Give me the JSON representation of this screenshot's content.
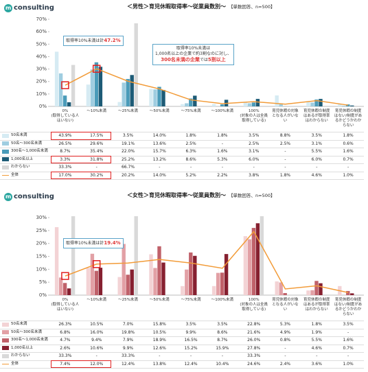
{
  "chart_data": [
    {
      "type": "bar",
      "logo_icon": "m",
      "logo": "consulting",
      "title": "＜男性＞育児休暇取得率～従業員数別～",
      "note": "【単数回答、n=500】",
      "categories": [
        "0%\n(取得している人はいない)",
        "～10%未満",
        "～25%未満",
        "～50%未満",
        "～75%未満",
        "～100%未満",
        "100%\n(対象の人は全員取得している)",
        "育児休暇の対象となる人がいない",
        "育児休暇の制度はあるが取得率はわからない",
        "育児休暇の制度はない/制度があるかどうかわからない"
      ],
      "ylim": [
        0,
        70
      ],
      "yticks": [
        {
          "value": 0,
          "label": "0%"
        },
        {
          "value": 10,
          "label": "10%"
        },
        {
          "value": 20,
          "label": "20%"
        },
        {
          "value": 30,
          "label": "30%"
        },
        {
          "value": 40,
          "label": "40%"
        },
        {
          "value": 50,
          "label": "50%"
        },
        {
          "value": 60,
          "label": "60%"
        },
        {
          "value": 70,
          "label": "70%"
        }
      ],
      "series": [
        {
          "name": "50名未満",
          "color": "#d6ebf3",
          "values": [
            43.9,
            17.5,
            3.5,
            14.0,
            1.8,
            1.8,
            3.5,
            8.8,
            3.5,
            1.8
          ],
          "value_labels": [
            "43.9%",
            "17.5%",
            "3.5%",
            "14.0%",
            "1.8%",
            "1.8%",
            "3.5%",
            "8.8%",
            "3.5%",
            "1.8%"
          ]
        },
        {
          "name": "50名～300名未満",
          "color": "#9fcde0",
          "values": [
            26.5,
            29.6,
            19.1,
            13.6,
            2.5,
            null,
            2.5,
            2.5,
            3.1,
            0.6
          ],
          "value_labels": [
            "26.5%",
            "29.6%",
            "19.1%",
            "13.6%",
            "2.5%",
            "-",
            "2.5%",
            "2.5%",
            "3.1%",
            "0.6%"
          ]
        },
        {
          "name": "300名～1,000名未満",
          "color": "#4a9bb9",
          "values": [
            8.7,
            35.4,
            22.0,
            15.7,
            6.3,
            1.6,
            3.1,
            null,
            5.5,
            1.6
          ],
          "value_labels": [
            "8.7%",
            "35.4%",
            "22.0%",
            "15.7%",
            "6.3%",
            "1.6%",
            "3.1%",
            "-",
            "5.5%",
            "1.6%"
          ]
        },
        {
          "name": "1,000名以上",
          "color": "#1d5b76",
          "values": [
            3.3,
            31.8,
            25.2,
            13.2,
            8.6,
            5.3,
            6.0,
            null,
            6.0,
            0.7
          ],
          "value_labels": [
            "3.3%",
            "31.8%",
            "25.2%",
            "13.2%",
            "8.6%",
            "5.3%",
            "6.0%",
            "-",
            "6.0%",
            "0.7%"
          ]
        },
        {
          "name": "わからない",
          "color": "#d9d9d9",
          "values": [
            33.3,
            null,
            66.7,
            null,
            null,
            null,
            null,
            null,
            null,
            null
          ],
          "value_labels": [
            "33.3%",
            "-",
            "66.7%",
            "-",
            "-",
            "-",
            "-",
            "-",
            "-",
            "-"
          ]
        },
        {
          "name": "全体",
          "color": "#f29b38",
          "type": "line",
          "values": [
            17.0,
            30.2,
            20.2,
            14.0,
            5.2,
            2.2,
            3.8,
            1.8,
            4.6,
            1.0
          ],
          "value_labels": [
            "17.0%",
            "30.2%",
            "20.2%",
            "14.0%",
            "5.2%",
            "2.2%",
            "3.8%",
            "1.8%",
            "4.6%",
            "1.0%"
          ]
        }
      ],
      "annotations": [
        {
          "lines": [
            [
              {
                "text": "取得率10%未満は計"
              },
              {
                "text": "47.2%",
                "highlight": true
              }
            ]
          ]
        },
        {
          "lines": [
            [
              {
                "text": "取得率10%未満は"
              }
            ],
            [
              {
                "text": "1,000名以上の企業で約3割なのに対し、"
              }
            ],
            [
              {
                "text": "300名未満の企業",
                "highlight": true
              },
              {
                "text": "では"
              },
              {
                "text": "5割以上",
                "highlight": true
              }
            ]
          ]
        }
      ]
    },
    {
      "type": "bar",
      "logo_icon": "m",
      "logo": "consulting",
      "title": "＜女性＞育児休暇取得率～従業員数別～",
      "note": "【単数回答、n=500】",
      "categories": [
        "0%\n(取得している人はいない)",
        "～10%未満",
        "～25%未満",
        "～50%未満",
        "～75%未満",
        "～100%未満",
        "100%\n(対象の人は全員取得している)",
        "育児休暇の対象となる人がいない",
        "育児休暇の制度はあるが取得率はわからない",
        "育児休暇の制度はない/制度があるかどうかわからない"
      ],
      "ylim": [
        0,
        30
      ],
      "yticks": [
        {
          "value": 0,
          "label": "0%"
        },
        {
          "value": 5,
          "label": "5%"
        },
        {
          "value": 10,
          "label": "10%"
        },
        {
          "value": 15,
          "label": "15%"
        },
        {
          "value": 20,
          "label": "20%"
        },
        {
          "value": 25,
          "label": "25%"
        },
        {
          "value": 30,
          "label": "30%"
        }
      ],
      "series": [
        {
          "name": "50名未満",
          "color": "#f3d3d5",
          "values": [
            26.3,
            10.5,
            7.0,
            15.8,
            3.5,
            3.5,
            22.8,
            5.3,
            1.8,
            3.5
          ],
          "value_labels": [
            "26.3%",
            "10.5%",
            "7.0%",
            "15.8%",
            "3.5%",
            "3.5%",
            "22.8%",
            "5.3%",
            "1.8%",
            "3.5%"
          ]
        },
        {
          "name": "50名～300名未満",
          "color": "#e2a0a5",
          "values": [
            6.8,
            16.0,
            19.8,
            10.5,
            9.9,
            8.6,
            21.6,
            4.9,
            1.9,
            null
          ],
          "value_labels": [
            "6.8%",
            "16.0%",
            "19.8%",
            "10.5%",
            "9.9%",
            "8.6%",
            "21.6%",
            "4.9%",
            "1.9%",
            "-"
          ]
        },
        {
          "name": "300名～1,000名未満",
          "color": "#c0616a",
          "values": [
            4.7,
            9.4,
            7.9,
            18.9,
            16.5,
            8.7,
            26.0,
            0.8,
            5.5,
            1.6
          ],
          "value_labels": [
            "4.7%",
            "9.4%",
            "7.9%",
            "18.9%",
            "16.5%",
            "8.7%",
            "26.0%",
            "0.8%",
            "5.5%",
            "1.6%"
          ]
        },
        {
          "name": "1,000名以上",
          "color": "#862030",
          "values": [
            2.6,
            10.6,
            9.9,
            12.6,
            15.2,
            15.9,
            27.8,
            null,
            4.6,
            0.7
          ],
          "value_labels": [
            "2.6%",
            "10.6%",
            "9.9%",
            "12.6%",
            "15.2%",
            "15.9%",
            "27.8%",
            "-",
            "4.6%",
            "0.7%"
          ]
        },
        {
          "name": "わからない",
          "color": "#d9d9d9",
          "values": [
            33.3,
            null,
            33.3,
            null,
            null,
            null,
            33.3,
            null,
            null,
            null
          ],
          "value_labels": [
            "33.3%",
            "-",
            "33.3%",
            "-",
            "-",
            "-",
            "33.3%",
            "-",
            "-",
            "-"
          ]
        },
        {
          "name": "全体",
          "color": "#f29b38",
          "type": "line",
          "values": [
            7.4,
            12.0,
            12.4,
            13.8,
            12.4,
            10.4,
            24.6,
            2.4,
            3.6,
            1.0
          ],
          "value_labels": [
            "7.4%",
            "12.0%",
            "12.4%",
            "13.8%",
            "12.4%",
            "10.4%",
            "24.6%",
            "2.4%",
            "3.6%",
            "1.0%"
          ]
        }
      ],
      "annotations": [
        {
          "lines": [
            [
              {
                "text": "取得率10%未満は計"
              },
              {
                "text": "19.4%",
                "highlight": true
              }
            ]
          ]
        }
      ]
    }
  ]
}
